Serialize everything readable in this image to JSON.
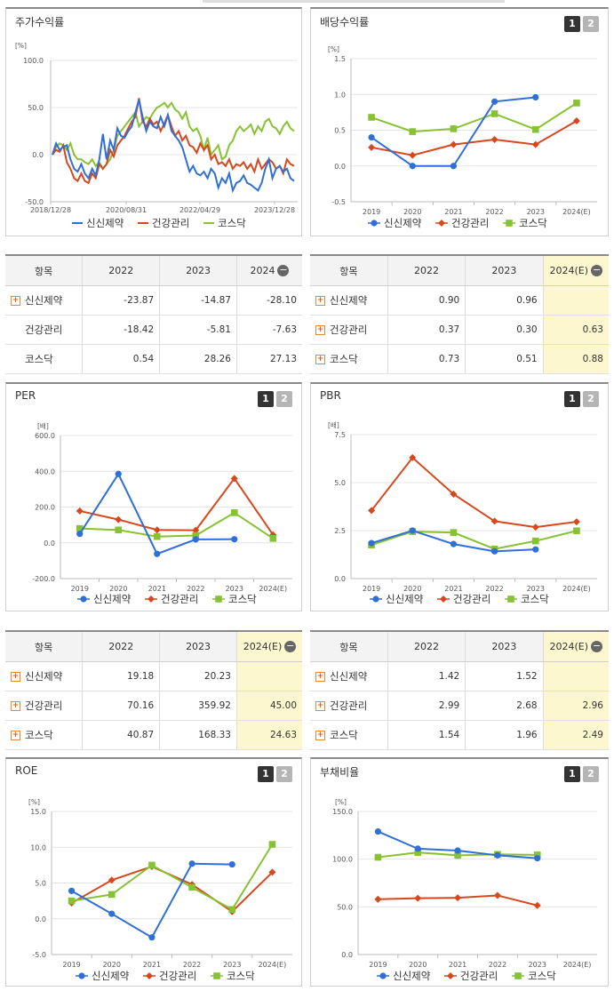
{
  "colors": {
    "s1": "#2f6fd6",
    "s2": "#d8471c",
    "s3": "#86c232",
    "highlight": "#fdf7d0"
  },
  "legend": {
    "s1": "신신제약",
    "s2": "건강관리",
    "s3": "코스닥"
  },
  "buttons": {
    "b1": "1",
    "b2": "2"
  },
  "stock": {
    "title": "주가수익률",
    "unit": "[%]",
    "chart_data": {
      "type": "line",
      "title": "주가수익률",
      "ylabel": "[%]",
      "ylim": [
        -50,
        100
      ],
      "yticks": [
        "100.0",
        "50.0",
        "0.0",
        "-50.0"
      ],
      "xticks": [
        "2018/12/28",
        "2020/08/31",
        "2022/04/29",
        "2023/12/28"
      ],
      "series": [
        {
          "name": "신신제약",
          "values": [
            0,
            12,
            5,
            8,
            10,
            -5,
            -15,
            -18,
            -10,
            -20,
            -25,
            -15,
            -22,
            -5,
            22,
            -5,
            15,
            5,
            28,
            20,
            18,
            25,
            30,
            45,
            58,
            40,
            25,
            35,
            30,
            28,
            40,
            30,
            42,
            25,
            20,
            15,
            8,
            -5,
            -18,
            -12,
            -20,
            -22,
            -18,
            -25,
            -15,
            -20,
            -35,
            -25,
            -30,
            -20,
            -38,
            -30,
            -28,
            -22,
            -30,
            -32,
            -35,
            -38,
            -30,
            -15,
            -5,
            -25,
            -15,
            -12,
            -18,
            -15,
            -25,
            -28
          ]
        },
        {
          "name": "건강관리",
          "values": [
            0,
            5,
            3,
            10,
            -8,
            -15,
            -25,
            -28,
            -20,
            -28,
            -30,
            -20,
            -25,
            -10,
            -15,
            -10,
            5,
            -2,
            10,
            15,
            20,
            28,
            35,
            40,
            60,
            35,
            30,
            38,
            32,
            35,
            25,
            33,
            42,
            30,
            20,
            25,
            15,
            20,
            10,
            8,
            2,
            12,
            5,
            10,
            -5,
            0,
            -10,
            -8,
            -12,
            -5,
            -15,
            -10,
            -12,
            -8,
            -15,
            -10,
            -18,
            -5,
            -15,
            -10,
            -5,
            -8,
            -15,
            -12,
            -20,
            -5,
            -10,
            -12
          ]
        },
        {
          "name": "코스닥",
          "values": [
            0,
            8,
            12,
            10,
            5,
            12,
            0,
            -5,
            -5,
            -8,
            -10,
            -5,
            -12,
            -8,
            -15,
            -10,
            -5,
            5,
            20,
            25,
            30,
            35,
            40,
            45,
            30,
            35,
            40,
            38,
            45,
            50,
            52,
            55,
            50,
            55,
            48,
            45,
            38,
            45,
            30,
            25,
            28,
            20,
            5,
            18,
            0,
            5,
            10,
            -5,
            -2,
            10,
            15,
            25,
            30,
            25,
            28,
            32,
            22,
            30,
            25,
            35,
            38,
            30,
            28,
            22,
            30,
            35,
            28,
            25
          ]
        }
      ]
    }
  },
  "dividend": {
    "title": "배당수익률",
    "unit": "[%]",
    "chart_data": {
      "type": "line",
      "title": "배당수익률",
      "ylabel": "[%]",
      "ylim": [
        -0.5,
        1.5
      ],
      "yticks": [
        "1.5",
        "1.0",
        "0.5",
        "0.0",
        "-0.5"
      ],
      "categories": [
        "2019",
        "2020",
        "2021",
        "2022",
        "2023",
        "2024(E)"
      ],
      "series": [
        {
          "name": "신신제약",
          "values": [
            0.4,
            0.0,
            0.0,
            0.9,
            0.96,
            null
          ]
        },
        {
          "name": "건강관리",
          "values": [
            0.26,
            0.15,
            0.3,
            0.37,
            0.3,
            0.63
          ]
        },
        {
          "name": "코스닥",
          "values": [
            0.68,
            0.48,
            0.52,
            0.73,
            0.51,
            0.88
          ]
        }
      ]
    }
  },
  "per": {
    "title": "PER",
    "unit": "[배]",
    "chart_data": {
      "type": "line",
      "title": "PER",
      "ylabel": "[배]",
      "ylim": [
        -200,
        600
      ],
      "yticks": [
        "600.0",
        "400.0",
        "200.0",
        "0.0",
        "-200.0"
      ],
      "categories": [
        "2019",
        "2020",
        "2021",
        "2022",
        "2023",
        "2024(E)"
      ],
      "series": [
        {
          "name": "신신제약",
          "values": [
            50,
            385,
            -62,
            19.18,
            20.23,
            null
          ]
        },
        {
          "name": "건강관리",
          "values": [
            178,
            130,
            72,
            70.16,
            359.92,
            45.0
          ]
        },
        {
          "name": "코스닥",
          "values": [
            80,
            72,
            35,
            40.87,
            168.33,
            24.63
          ]
        }
      ]
    }
  },
  "pbr": {
    "title": "PBR",
    "unit": "[배]",
    "chart_data": {
      "type": "line",
      "title": "PBR",
      "ylabel": "[배]",
      "ylim": [
        0,
        7.5
      ],
      "yticks": [
        "7.5",
        "5.0",
        "2.5",
        "0.0"
      ],
      "categories": [
        "2019",
        "2020",
        "2021",
        "2022",
        "2023",
        "2024(E)"
      ],
      "series": [
        {
          "name": "신신제약",
          "values": [
            1.85,
            2.5,
            1.8,
            1.42,
            1.52,
            null
          ]
        },
        {
          "name": "건강관리",
          "values": [
            3.55,
            6.3,
            4.4,
            2.99,
            2.68,
            2.96
          ]
        },
        {
          "name": "코스닥",
          "values": [
            1.75,
            2.45,
            2.4,
            1.54,
            1.96,
            2.49
          ]
        }
      ]
    }
  },
  "roe": {
    "title": "ROE",
    "unit": "[%]",
    "chart_data": {
      "type": "line",
      "title": "ROE",
      "ylabel": "[%]",
      "ylim": [
        -5,
        15
      ],
      "yticks": [
        "15.0",
        "10.0",
        "5.0",
        "0.0",
        "-5.0"
      ],
      "categories": [
        "2019",
        "2020",
        "2021",
        "2022",
        "2023",
        "2024(E)"
      ],
      "series": [
        {
          "name": "신신제약",
          "values": [
            3.9,
            0.7,
            -2.6,
            7.7,
            7.6,
            null
          ]
        },
        {
          "name": "건강관리",
          "values": [
            2.2,
            5.4,
            7.3,
            4.8,
            1.0,
            6.5
          ]
        },
        {
          "name": "코스닥",
          "values": [
            2.5,
            3.4,
            7.5,
            4.4,
            1.3,
            10.4
          ]
        }
      ]
    }
  },
  "debt": {
    "title": "부채비율",
    "unit": "[%]",
    "chart_data": {
      "type": "line",
      "title": "부채비율",
      "ylabel": "[%]",
      "ylim": [
        0,
        150
      ],
      "yticks": [
        "150.0",
        "100.0",
        "50.0",
        "0.0"
      ],
      "categories": [
        "2019",
        "2020",
        "2021",
        "2022",
        "2023",
        "2024(E)"
      ],
      "series": [
        {
          "name": "신신제약",
          "values": [
            129,
            111,
            109,
            104,
            101,
            null
          ]
        },
        {
          "name": "건강관리",
          "values": [
            58,
            59,
            59.5,
            62,
            51.5,
            null
          ]
        },
        {
          "name": "코스닥",
          "values": [
            102,
            107,
            104,
            105,
            104.5,
            null
          ]
        }
      ]
    }
  },
  "tables": {
    "stock": {
      "headers": [
        "항목",
        "2022",
        "2023",
        "2024"
      ],
      "rows": [
        {
          "name": "신신제약",
          "v": [
            "-23.87",
            "-14.87",
            "-28.10"
          ]
        },
        {
          "name": "건강관리",
          "v": [
            "-18.42",
            "-5.81",
            "-7.63"
          ]
        },
        {
          "name": "코스닥",
          "v": [
            "0.54",
            "28.26",
            "27.13"
          ]
        }
      ]
    },
    "dividend": {
      "headers": [
        "항목",
        "2022",
        "2023",
        "2024(E)"
      ],
      "rows": [
        {
          "name": "신신제약",
          "v": [
            "0.90",
            "0.96",
            ""
          ]
        },
        {
          "name": "건강관리",
          "v": [
            "0.37",
            "0.30",
            "0.63"
          ]
        },
        {
          "name": "코스닥",
          "v": [
            "0.73",
            "0.51",
            "0.88"
          ]
        }
      ]
    },
    "per": {
      "headers": [
        "항목",
        "2022",
        "2023",
        "2024(E)"
      ],
      "rows": [
        {
          "name": "신신제약",
          "v": [
            "19.18",
            "20.23",
            ""
          ]
        },
        {
          "name": "건강관리",
          "v": [
            "70.16",
            "359.92",
            "45.00"
          ]
        },
        {
          "name": "코스닥",
          "v": [
            "40.87",
            "168.33",
            "24.63"
          ]
        }
      ]
    },
    "pbr": {
      "headers": [
        "항목",
        "2022",
        "2023",
        "2024(E)"
      ],
      "rows": [
        {
          "name": "신신제약",
          "v": [
            "1.42",
            "1.52",
            ""
          ]
        },
        {
          "name": "건강관리",
          "v": [
            "2.99",
            "2.68",
            "2.96"
          ]
        },
        {
          "name": "코스닥",
          "v": [
            "1.54",
            "1.96",
            "2.49"
          ]
        }
      ]
    }
  }
}
